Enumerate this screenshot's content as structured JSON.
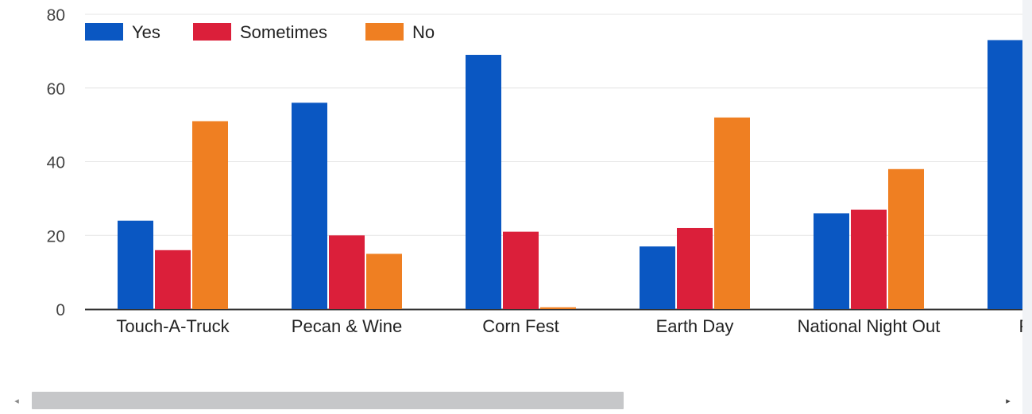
{
  "chart_data": {
    "type": "bar",
    "categories": [
      "Touch-A-Truck",
      "Pecan & Wine",
      "Corn Fest",
      "Earth Day",
      "National Night Out",
      "Fort V"
    ],
    "series": [
      {
        "name": "Yes",
        "color": "#0a57c2",
        "values": [
          24,
          56,
          69,
          17,
          26,
          73
        ]
      },
      {
        "name": "Sometimes",
        "color": "#db1f3a",
        "values": [
          16,
          20,
          21,
          22,
          27,
          null
        ]
      },
      {
        "name": "No",
        "color": "#ef7f22",
        "values": [
          51,
          15,
          0.5,
          52,
          38,
          null
        ]
      }
    ],
    "yticks": [
      "0",
      "20",
      "40",
      "60",
      "80"
    ],
    "ylim": [
      0,
      80
    ],
    "grid": true,
    "legend_position": "top-left"
  },
  "scrollbar": {
    "left_arrow": "◂",
    "right_arrow": "▸"
  }
}
